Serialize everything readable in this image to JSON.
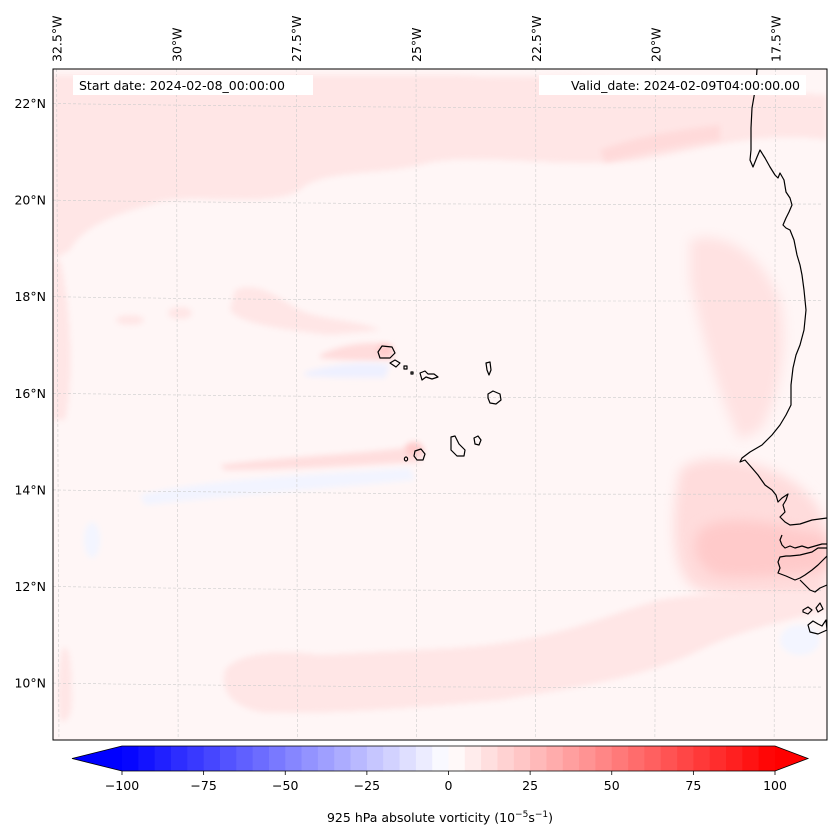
{
  "figure": {
    "start_date_label": "Start date: 2024-02-08_00:00:00",
    "valid_date_label": "Valid_date: 2024-02-09T04:00:00.00"
  },
  "map": {
    "projection": "lambert-conformal",
    "extent_lon": [
      -32.6,
      -13.6
    ],
    "extent_lat": [
      8.9,
      22.8
    ],
    "background_color": "#fff6f6",
    "coastline_color": "#000000",
    "gridline_color": "#cccccc",
    "lon_ticks": [
      {
        "value": -32.5,
        "label": "32.5°W"
      },
      {
        "value": -30,
        "label": "30°W"
      },
      {
        "value": -27.5,
        "label": "27.5°W"
      },
      {
        "value": -25,
        "label": "25°W"
      },
      {
        "value": -22.5,
        "label": "22.5°W"
      },
      {
        "value": -20,
        "label": "20°W"
      },
      {
        "value": -17.5,
        "label": "17.5°W"
      }
    ],
    "lat_ticks": [
      {
        "value": 22,
        "label": "22°N"
      },
      {
        "value": 20,
        "label": "20°N"
      },
      {
        "value": 18,
        "label": "18°N"
      },
      {
        "value": 16,
        "label": "16°N"
      },
      {
        "value": 14,
        "label": "14°N"
      },
      {
        "value": 12,
        "label": "12°N"
      },
      {
        "value": 10,
        "label": "10°N"
      }
    ],
    "features": [
      {
        "name": "west-africa-coastline",
        "type": "coastline"
      },
      {
        "name": "cape-verde-islands",
        "type": "islands",
        "count": 10
      }
    ],
    "field_anomalies": [
      {
        "name": "northern-positive-band",
        "lat": 21.0,
        "lon": -27.0,
        "value": 5
      },
      {
        "name": "southern-positive-band",
        "lat": 10.5,
        "lon": -22.5,
        "value": 5
      },
      {
        "name": "senegal-coast-maximum",
        "lat": 12.6,
        "lon": -17.5,
        "value": 15
      },
      {
        "name": "cape-verde-island-wake-positive",
        "lat": 16.9,
        "lon": -25.0,
        "value": 15
      },
      {
        "name": "cape-verde-island-wake-negative",
        "lat": 16.4,
        "lon": -25.5,
        "value": -5
      }
    ]
  },
  "colorbar": {
    "label_prefix": "925 hPa absolute vorticity (10",
    "label_exp1": "−5",
    "label_mid": "s",
    "label_exp2": "−1",
    "label_suffix": ")",
    "vmin": -100,
    "vmax": 100,
    "step": 5,
    "colormap": "bwr",
    "extend": "both",
    "ticks": [
      {
        "value": -100,
        "label": "−100"
      },
      {
        "value": -75,
        "label": "−75"
      },
      {
        "value": -50,
        "label": "−50"
      },
      {
        "value": -25,
        "label": "−25"
      },
      {
        "value": 0,
        "label": "0"
      },
      {
        "value": 25,
        "label": "25"
      },
      {
        "value": 50,
        "label": "50"
      },
      {
        "value": 75,
        "label": "75"
      },
      {
        "value": 100,
        "label": "100"
      }
    ]
  }
}
